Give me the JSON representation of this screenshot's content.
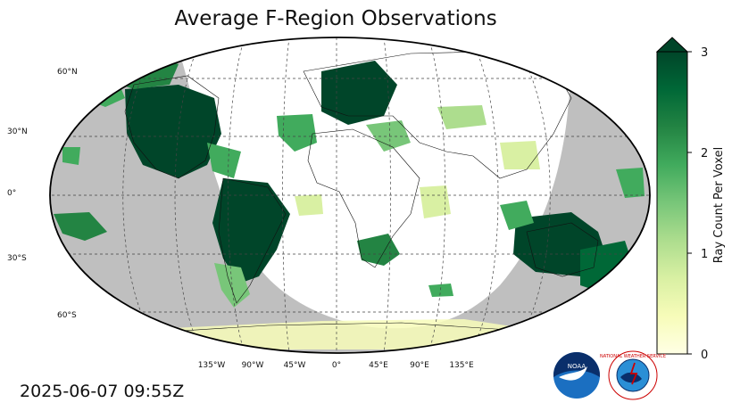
{
  "title": "Average F-Region Observations",
  "timestamp": "2025-06-07 09:55Z",
  "lat_labels": [
    "60°N",
    "30°N",
    "0°",
    "30°S",
    "60°S"
  ],
  "lon_labels": [
    "135°W",
    "90°W",
    "45°W",
    "0°",
    "45°E",
    "90°E",
    "135°E"
  ],
  "colorbar": {
    "label": "Ray Count Per Voxel",
    "ticks": [
      "0",
      "1",
      "2",
      "3"
    ],
    "min": 0,
    "max": 3,
    "extend": "max",
    "colors": [
      "#ffffe5",
      "#f7fcb9",
      "#d9f0a3",
      "#addd8e",
      "#78c679",
      "#41ab5d",
      "#238443",
      "#006837",
      "#004529"
    ]
  },
  "map": {
    "projection": "Robinson-like",
    "night_color": "#bfbfbf",
    "day_color": "#ffffff"
  },
  "logos": {
    "noaa": "NOAA",
    "nws": "NATIONAL WEATHER SERVICE"
  }
}
